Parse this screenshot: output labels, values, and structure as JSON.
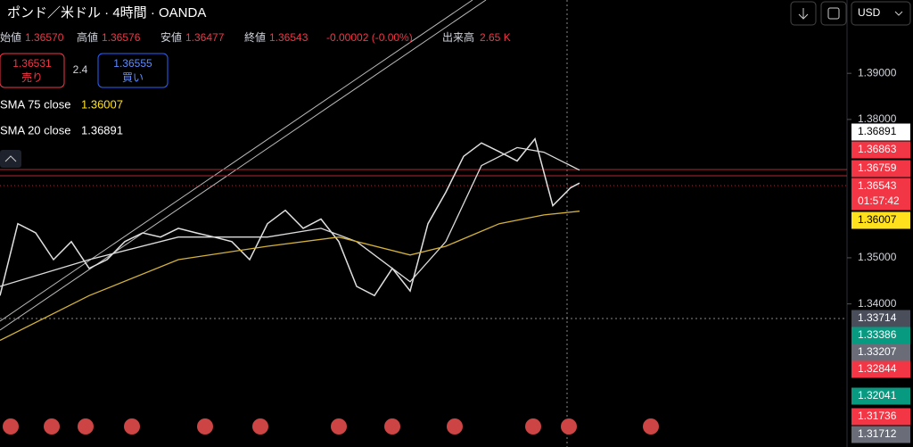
{
  "header": {
    "symbol": "ポンド／米ドル · 4時間 · OANDA",
    "open_label": "始値",
    "open": "1.36570",
    "high_label": "高値",
    "high": "1.36576",
    "low_label": "安値",
    "low": "1.36477",
    "close_label": "終値",
    "close": "1.36543",
    "change": "-0.00002 (-0.00%)",
    "volume_label": "出来高",
    "volume": "2.65 K",
    "sell_price": "1.36531",
    "sell": "売り",
    "spread": "2.4",
    "buy_price": "1.36555",
    "buy": "買い",
    "sma75_name": "SMA 75 close",
    "sma75": "1.36007",
    "sma20_name": "SMA 20 close",
    "sma20": "1.36891",
    "currency": "USD"
  },
  "chart_data": {
    "type": "line",
    "xlim": [
      0,
      95
    ],
    "ylim": [
      1.3111,
      1.4059
    ],
    "yticks": [
      {
        "value": 1.39,
        "label": "1.39000"
      },
      {
        "value": 1.38,
        "label": "1.38000"
      },
      {
        "value": 1.35,
        "label": "1.35000"
      },
      {
        "value": 1.34,
        "label": "1.34000"
      }
    ],
    "series": [
      {
        "name": "price",
        "color": "#e0e0e0",
        "x": [
          0,
          2,
          4,
          6,
          8,
          10,
          12,
          14,
          16,
          18,
          20,
          22,
          24,
          26,
          28,
          30,
          32,
          34,
          36,
          38,
          40,
          42,
          44,
          46,
          48,
          50,
          52,
          54,
          56,
          58,
          60,
          62,
          64,
          65
        ],
        "values": [
          1.3418,
          1.3574,
          1.3554,
          1.3496,
          1.3535,
          1.3477,
          1.3496,
          1.3535,
          1.3554,
          1.3545,
          1.3564,
          1.3554,
          1.3545,
          1.3535,
          1.3496,
          1.3574,
          1.3603,
          1.3564,
          1.3584,
          1.3535,
          1.3438,
          1.3418,
          1.3477,
          1.3428,
          1.3574,
          1.3642,
          1.372,
          1.3749,
          1.373,
          1.371,
          1.3758,
          1.3613,
          1.3652,
          1.3662
        ]
      },
      {
        "name": "SMA 20",
        "color": "#dddddd",
        "x": [
          0,
          10,
          20,
          30,
          36,
          40,
          44,
          46,
          50,
          54,
          58,
          61,
          65
        ],
        "values": [
          1.3438,
          1.3496,
          1.3545,
          1.3545,
          1.3564,
          1.3535,
          1.3477,
          1.3448,
          1.3535,
          1.37,
          1.3739,
          1.3729,
          1.369
        ]
      },
      {
        "name": "SMA 75",
        "color": "#d4b23a",
        "x": [
          0,
          10,
          20,
          30,
          38,
          46,
          50,
          56,
          61,
          65
        ],
        "values": [
          1.3321,
          1.3418,
          1.3496,
          1.3525,
          1.3545,
          1.3506,
          1.3525,
          1.3574,
          1.3593,
          1.3601
        ]
      }
    ],
    "price_labels": [
      {
        "value": 1.36891,
        "label": "1.36891",
        "color": "#ffffff"
      },
      {
        "value": 1.36863,
        "label": "1.36863",
        "color": "#f23645"
      },
      {
        "value": 1.36759,
        "label": "1.36759",
        "color": "#f23645"
      },
      {
        "value": 1.36543,
        "label": "1.36543",
        "color": "#f23645"
      },
      {
        "value": 1.36007,
        "label": "1.36007",
        "color": "#ffe11d"
      },
      {
        "value": 1.33714,
        "label": "1.33714",
        "color": "#4a4e5a"
      },
      {
        "value": 1.33386,
        "label": "1.33386",
        "color": "#089981"
      },
      {
        "value": 1.33207,
        "label": "1.33207",
        "color": "#6a6d78"
      },
      {
        "value": 1.32844,
        "label": "1.32844",
        "color": "#f23645"
      },
      {
        "value": 1.32041,
        "label": "1.32041",
        "color": "#089981"
      },
      {
        "value": 1.31736,
        "label": "1.31736",
        "color": "#f23645"
      },
      {
        "value": 1.31712,
        "label": "1.31712",
        "color": "#6a6d78"
      }
    ],
    "countdown": "01:57:42"
  }
}
